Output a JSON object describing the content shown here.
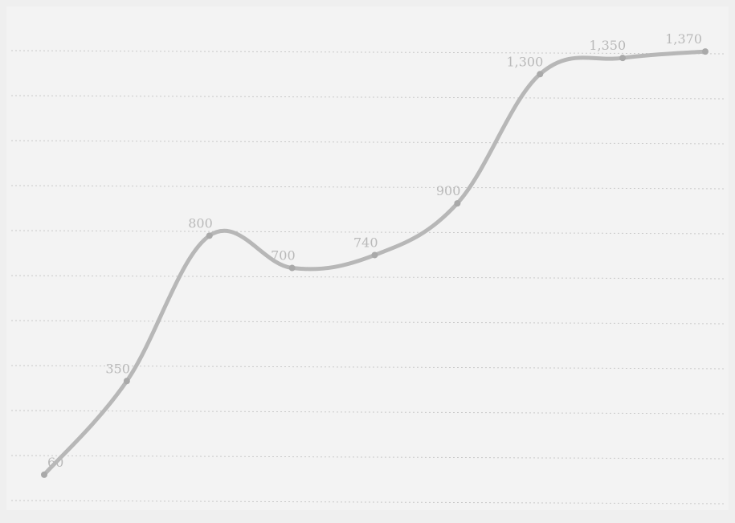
{
  "chart_data": {
    "type": "line",
    "x": [
      1,
      2,
      3,
      4,
      5,
      6,
      7,
      8,
      9
    ],
    "series": [
      {
        "values": [
          60,
          350,
          800,
          700,
          740,
          900,
          1300,
          1350,
          1370
        ],
        "labels": [
          "60",
          "350",
          "800",
          "700",
          "740",
          "900",
          "1,300",
          "1,350",
          "1,370"
        ]
      }
    ],
    "title": "",
    "xlabel": "",
    "ylabel": "",
    "ylim": [
      0,
      1430
    ],
    "grid": true,
    "legend": "none",
    "colors": {
      "background": "#efefef",
      "line": "#b7b7b7",
      "grid": "#c9c9c9",
      "label": "#b9b9b9"
    }
  }
}
